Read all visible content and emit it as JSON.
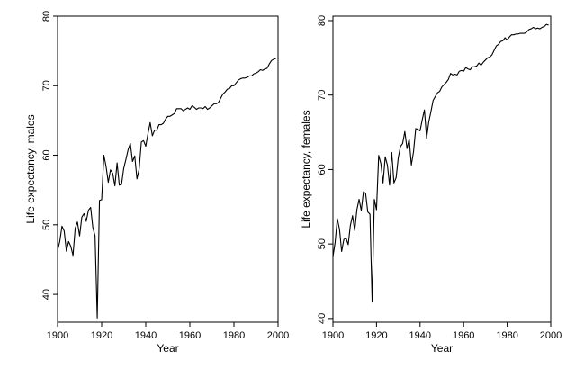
{
  "chart_data": [
    {
      "type": "line",
      "xlabel": "Year",
      "ylabel": "Life expectancy, males",
      "xlim": [
        1900,
        2000
      ],
      "ylim": [
        36,
        80
      ],
      "xticks": [
        1900,
        1920,
        1940,
        1960,
        1980,
        2000
      ],
      "yticks": [
        40,
        50,
        60,
        70,
        80
      ],
      "grid": false,
      "series": [
        {
          "x": [
            1900,
            1901,
            1902,
            1903,
            1904,
            1905,
            1906,
            1907,
            1908,
            1909,
            1910,
            1911,
            1912,
            1913,
            1914,
            1915,
            1916,
            1917,
            1918,
            1919,
            1920,
            1921,
            1922,
            1923,
            1924,
            1925,
            1926,
            1927,
            1928,
            1929,
            1930,
            1931,
            1932,
            1933,
            1934,
            1935,
            1936,
            1937,
            1938,
            1939,
            1940,
            1941,
            1942,
            1943,
            1944,
            1945,
            1946,
            1947,
            1948,
            1949,
            1950,
            1951,
            1952,
            1953,
            1954,
            1955,
            1956,
            1957,
            1958,
            1959,
            1960,
            1961,
            1962,
            1963,
            1964,
            1965,
            1966,
            1967,
            1968,
            1969,
            1970,
            1971,
            1972,
            1973,
            1974,
            1975,
            1976,
            1977,
            1978,
            1979,
            1980,
            1981,
            1982,
            1983,
            1984,
            1985,
            1986,
            1987,
            1988,
            1989,
            1990,
            1991,
            1992,
            1993,
            1994,
            1995,
            1996,
            1997,
            1998,
            1999
          ],
          "values": [
            46.3,
            47.6,
            49.8,
            49.1,
            46.2,
            47.6,
            46.9,
            45.6,
            49.5,
            50.4,
            48.4,
            51.1,
            51.6,
            50.5,
            52.1,
            52.5,
            49.6,
            48.4,
            36.6,
            53.5,
            53.6,
            60.0,
            58.4,
            56.1,
            57.9,
            57.4,
            55.6,
            58.9,
            55.7,
            55.8,
            58.1,
            59.4,
            60.8,
            61.7,
            59.1,
            59.9,
            56.6,
            58.0,
            61.9,
            62.1,
            61.3,
            63.1,
            64.7,
            62.8,
            63.6,
            63.6,
            64.4,
            64.4,
            64.6,
            65.2,
            65.6,
            65.6,
            65.8,
            66.0,
            66.7,
            66.7,
            66.7,
            66.4,
            66.6,
            66.8,
            66.6,
            67.1,
            66.9,
            66.6,
            66.8,
            66.8,
            66.7,
            67.0,
            66.6,
            66.8,
            67.1,
            67.4,
            67.4,
            67.6,
            68.2,
            68.8,
            69.1,
            69.5,
            69.6,
            70.0,
            70.0,
            70.4,
            70.8,
            71.0,
            71.1,
            71.1,
            71.2,
            71.4,
            71.4,
            71.7,
            71.8,
            72.0,
            72.3,
            72.2,
            72.4,
            72.5,
            73.1,
            73.6,
            73.8,
            73.9
          ]
        }
      ]
    },
    {
      "type": "line",
      "xlabel": "Year",
      "ylabel": "Life expectancy, females",
      "xlim": [
        1900,
        2000
      ],
      "ylim": [
        39.5,
        80.6
      ],
      "xticks": [
        1900,
        1920,
        1940,
        1960,
        1980,
        2000
      ],
      "yticks": [
        40,
        50,
        60,
        70,
        80
      ],
      "grid": false,
      "series": [
        {
          "x": [
            1900,
            1901,
            1902,
            1903,
            1904,
            1905,
            1906,
            1907,
            1908,
            1909,
            1910,
            1911,
            1912,
            1913,
            1914,
            1915,
            1916,
            1917,
            1918,
            1919,
            1920,
            1921,
            1922,
            1923,
            1924,
            1925,
            1926,
            1927,
            1928,
            1929,
            1930,
            1931,
            1932,
            1933,
            1934,
            1935,
            1936,
            1937,
            1938,
            1939,
            1940,
            1941,
            1942,
            1943,
            1944,
            1945,
            1946,
            1947,
            1948,
            1949,
            1950,
            1951,
            1952,
            1953,
            1954,
            1955,
            1956,
            1957,
            1958,
            1959,
            1960,
            1961,
            1962,
            1963,
            1964,
            1965,
            1966,
            1967,
            1968,
            1969,
            1970,
            1971,
            1972,
            1973,
            1974,
            1975,
            1976,
            1977,
            1978,
            1979,
            1980,
            1981,
            1982,
            1983,
            1984,
            1985,
            1986,
            1987,
            1988,
            1989,
            1990,
            1991,
            1992,
            1993,
            1994,
            1995,
            1996,
            1997,
            1998,
            1999
          ],
          "values": [
            48.3,
            50.2,
            53.4,
            52.0,
            49.0,
            50.6,
            50.8,
            49.9,
            52.5,
            53.8,
            51.8,
            54.6,
            56.0,
            54.5,
            57.0,
            56.8,
            54.3,
            54.0,
            42.2,
            56.0,
            54.6,
            61.9,
            60.8,
            58.2,
            61.7,
            60.6,
            57.9,
            62.3,
            58.2,
            58.9,
            61.6,
            63.1,
            63.5,
            65.1,
            62.8,
            64.1,
            60.6,
            62.4,
            65.5,
            65.4,
            65.2,
            66.7,
            68.0,
            64.2,
            66.4,
            67.8,
            69.3,
            69.8,
            70.3,
            70.5,
            71.1,
            71.4,
            71.7,
            72.1,
            72.9,
            72.7,
            72.8,
            72.7,
            73.2,
            73.3,
            73.2,
            73.7,
            73.5,
            73.4,
            73.8,
            73.8,
            73.9,
            74.3,
            74.0,
            74.4,
            74.7,
            75.0,
            75.1,
            75.4,
            76.0,
            76.6,
            76.8,
            77.2,
            77.3,
            77.7,
            77.4,
            77.8,
            78.1,
            78.1,
            78.2,
            78.2,
            78.3,
            78.3,
            78.3,
            78.5,
            78.8,
            78.9,
            79.1,
            78.9,
            79.0,
            78.9,
            79.1,
            79.2,
            79.5,
            79.4
          ]
        }
      ]
    }
  ]
}
